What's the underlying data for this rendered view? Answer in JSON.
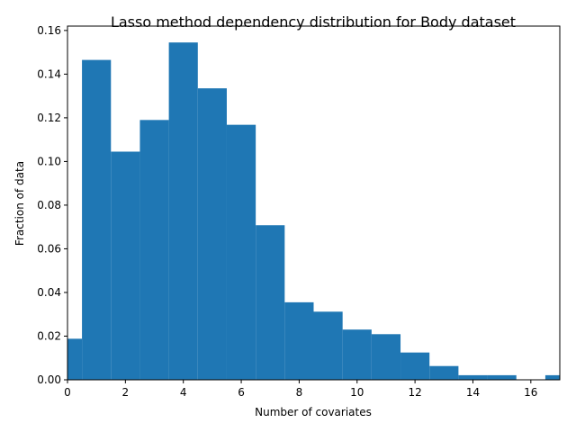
{
  "chart_data": {
    "type": "bar",
    "title": "Lasso method dependency distribution for Body dataset",
    "xlabel": "Number of covariates",
    "ylabel": "Fraction of data",
    "xlim": [
      0,
      17
    ],
    "ylim": [
      0,
      0.162
    ],
    "xticks": [
      "0",
      "2",
      "4",
      "6",
      "8",
      "10",
      "12",
      "14",
      "16"
    ],
    "yticks": [
      "0.00",
      "0.02",
      "0.04",
      "0.06",
      "0.08",
      "0.10",
      "0.12",
      "0.14",
      "0.16"
    ],
    "bin_width": 1,
    "bins": [
      {
        "start": -0.5,
        "value": 0.0188
      },
      {
        "start": 0.5,
        "value": 0.1465
      },
      {
        "start": 1.5,
        "value": 0.1045
      },
      {
        "start": 2.5,
        "value": 0.119
      },
      {
        "start": 3.5,
        "value": 0.1545
      },
      {
        "start": 4.5,
        "value": 0.1335
      },
      {
        "start": 5.5,
        "value": 0.1168
      },
      {
        "start": 6.5,
        "value": 0.0708
      },
      {
        "start": 7.5,
        "value": 0.0355
      },
      {
        "start": 8.5,
        "value": 0.0312
      },
      {
        "start": 9.5,
        "value": 0.023
      },
      {
        "start": 10.5,
        "value": 0.0209
      },
      {
        "start": 11.5,
        "value": 0.0125
      },
      {
        "start": 12.5,
        "value": 0.0063
      },
      {
        "start": 13.5,
        "value": 0.0021
      },
      {
        "start": 14.5,
        "value": 0.0021
      },
      {
        "start": 15.5,
        "value": 0.0
      },
      {
        "start": 16.5,
        "value": 0.0021
      }
    ],
    "bar_color": "#1f77b4",
    "grid": false,
    "legend": false
  }
}
